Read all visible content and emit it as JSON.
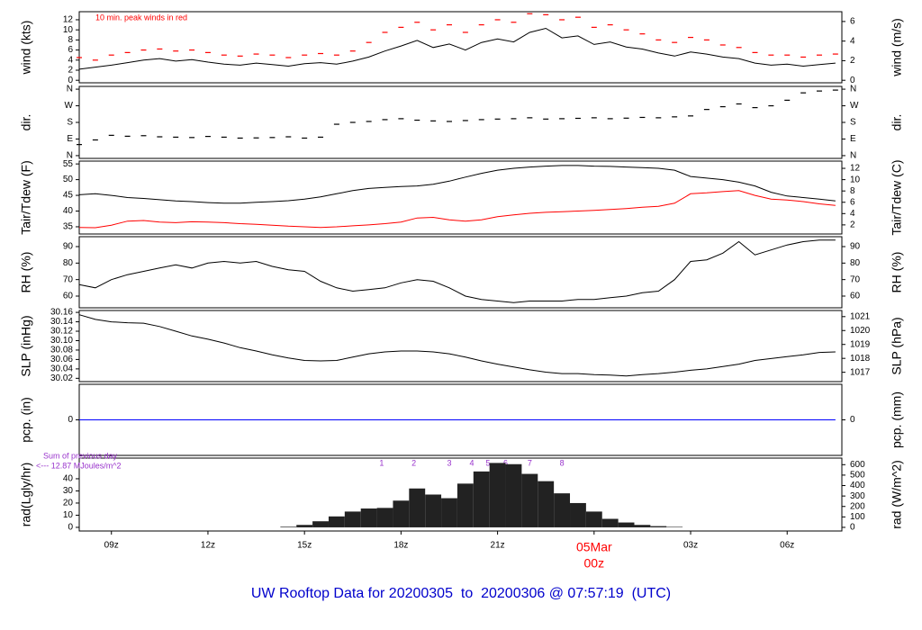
{
  "title": "UW Rooftop Data for 20200305  to  20200306 @ 07:57:19  (UTC)",
  "chart_data": [
    {
      "type": "line",
      "ylabel": "wind (kts)",
      "y2label": "wind (m/s)",
      "note": "10 min. peak winds in red",
      "note_color": "#ff0000",
      "xlim": [
        8,
        31.7
      ],
      "ylim": [
        -0.5,
        13.6
      ],
      "yticks": [
        0,
        2,
        4,
        6,
        8,
        10,
        12
      ],
      "y2lim": [
        -0.257,
        7.0
      ],
      "y2ticks": [
        0,
        2,
        4,
        6
      ],
      "x": [
        8,
        8.5,
        9,
        9.5,
        10,
        10.5,
        11,
        11.5,
        12,
        12.5,
        13,
        13.5,
        14,
        14.5,
        15,
        15.5,
        16,
        16.5,
        17,
        17.5,
        18,
        18.5,
        19,
        19.5,
        20,
        20.5,
        21,
        21.5,
        22,
        22.5,
        23,
        23.5,
        24,
        24.5,
        25,
        25.5,
        26,
        26.5,
        27,
        27.5,
        28,
        28.5,
        29,
        29.5,
        30,
        30.5,
        31,
        31.5
      ],
      "series": [
        {
          "color": "#000000",
          "values": [
            2.2,
            2.6,
            3.0,
            3.5,
            4.0,
            4.3,
            3.8,
            4.1,
            3.6,
            3.2,
            3.0,
            3.4,
            3.1,
            2.8,
            3.3,
            3.5,
            3.2,
            3.8,
            4.6,
            5.8,
            6.8,
            7.9,
            6.5,
            7.2,
            6.0,
            7.5,
            8.2,
            7.6,
            9.5,
            10.3,
            8.4,
            8.8,
            7.1,
            7.6,
            6.6,
            6.2,
            5.4,
            4.8,
            5.6,
            5.2,
            4.6,
            4.3,
            3.4,
            3.0,
            3.2,
            2.8,
            3.1,
            3.4
          ]
        },
        {
          "color": "#ff0000",
          "marker": "dash",
          "values": [
            4.5,
            4.0,
            5.0,
            5.5,
            6.0,
            6.2,
            5.8,
            6.0,
            5.5,
            5.0,
            4.8,
            5.2,
            5.0,
            4.5,
            5.0,
            5.3,
            5.0,
            5.8,
            7.5,
            9.5,
            10.5,
            11.5,
            10.0,
            11.0,
            9.5,
            11.0,
            12.0,
            11.5,
            13.2,
            13.0,
            12.0,
            12.5,
            10.5,
            11.0,
            10.0,
            9.2,
            8.0,
            7.5,
            8.5,
            8.0,
            7.0,
            6.5,
            5.5,
            5.0,
            5.0,
            4.6,
            5.0,
            5.2
          ]
        }
      ]
    },
    {
      "type": "scatter",
      "ylabel": "dir.",
      "y2label": "dir.",
      "xlim": [
        8,
        31.7
      ],
      "ylim": [
        -15,
        375
      ],
      "yticks": [
        {
          "value": 0,
          "label": "N"
        },
        {
          "value": 90,
          "label": "E"
        },
        {
          "value": 180,
          "label": "S"
        },
        {
          "value": 270,
          "label": "W"
        },
        {
          "value": 360,
          "label": "N"
        }
      ],
      "y2lim": [
        -15,
        375
      ],
      "y2ticks": [
        {
          "value": 0,
          "label": "N"
        },
        {
          "value": 90,
          "label": "E"
        },
        {
          "value": 180,
          "label": "S"
        },
        {
          "value": 270,
          "label": "W"
        },
        {
          "value": 360,
          "label": "N"
        }
      ],
      "x": [
        8,
        8.5,
        9,
        9.5,
        10,
        10.5,
        11,
        11.5,
        12,
        12.5,
        13,
        13.5,
        14,
        14.5,
        15,
        15.5,
        16,
        16.5,
        17,
        17.5,
        18,
        18.5,
        19,
        19.5,
        20,
        20.5,
        21,
        21.5,
        22,
        22.5,
        23,
        23.5,
        24,
        24.5,
        25,
        25.5,
        26,
        26.5,
        27,
        27.5,
        28,
        28.5,
        29,
        29.5,
        30,
        30.5,
        31,
        31.5
      ],
      "series": [
        {
          "color": "#000000",
          "values": [
            60,
            85,
            110,
            105,
            108,
            102,
            100,
            98,
            104,
            100,
            95,
            96,
            98,
            102,
            95,
            100,
            170,
            180,
            185,
            195,
            200,
            192,
            188,
            185,
            190,
            195,
            198,
            200,
            205,
            198,
            200,
            202,
            205,
            200,
            203,
            207,
            205,
            210,
            215,
            250,
            265,
            280,
            260,
            270,
            300,
            340,
            350,
            355
          ]
        }
      ]
    },
    {
      "type": "line",
      "ylabel": "Tair/Tdew (F)",
      "y2label": "Tair/Tdew (C)",
      "xlim": [
        8,
        31.7
      ],
      "ylim": [
        32.7,
        55.9
      ],
      "yticks": [
        35,
        40,
        45,
        50,
        55
      ],
      "y2lim": [
        0.39,
        13.28
      ],
      "y2ticks": [
        2,
        4,
        6,
        8,
        10,
        12
      ],
      "x": [
        8,
        8.5,
        9,
        9.5,
        10,
        10.5,
        11,
        11.5,
        12,
        12.5,
        13,
        13.5,
        14,
        14.5,
        15,
        15.5,
        16,
        16.5,
        17,
        17.5,
        18,
        18.5,
        19,
        19.5,
        20,
        20.5,
        21,
        21.5,
        22,
        22.5,
        23,
        23.5,
        24,
        24.5,
        25,
        25.5,
        26,
        26.5,
        27,
        27.5,
        28,
        28.5,
        29,
        29.5,
        30,
        30.5,
        31,
        31.5
      ],
      "series": [
        {
          "color": "#000000",
          "values": [
            45.2,
            45.5,
            45.0,
            44.3,
            44.0,
            43.6,
            43.2,
            43.0,
            42.7,
            42.5,
            42.5,
            42.8,
            43.0,
            43.3,
            43.8,
            44.5,
            45.5,
            46.5,
            47.2,
            47.5,
            47.8,
            48.0,
            48.5,
            49.5,
            50.8,
            52.0,
            53.0,
            53.6,
            54.0,
            54.3,
            54.5,
            54.5,
            54.3,
            54.2,
            54.0,
            53.8,
            53.6,
            53.0,
            51.0,
            50.5,
            50.0,
            49.2,
            48.0,
            46.0,
            44.8,
            44.3,
            43.8,
            43.2
          ]
        },
        {
          "color": "#ff0000",
          "values": [
            34.8,
            34.7,
            35.5,
            36.8,
            37.0,
            36.5,
            36.3,
            36.6,
            36.5,
            36.3,
            36.0,
            35.8,
            35.5,
            35.2,
            35.0,
            34.8,
            35.0,
            35.3,
            35.6,
            36.0,
            36.5,
            37.8,
            38.0,
            37.2,
            36.8,
            37.2,
            38.2,
            38.8,
            39.3,
            39.6,
            39.8,
            40.0,
            40.2,
            40.5,
            40.8,
            41.2,
            41.5,
            42.5,
            45.5,
            45.8,
            46.2,
            46.5,
            45.0,
            43.8,
            43.5,
            43.0,
            42.3,
            41.8
          ]
        }
      ]
    },
    {
      "type": "line",
      "ylabel": "RH (%)",
      "y2label": "RH (%)",
      "xlim": [
        8,
        31.7
      ],
      "ylim": [
        52.9,
        96
      ],
      "yticks": [
        60,
        70,
        80,
        90
      ],
      "y2lim": [
        52.9,
        96
      ],
      "y2ticks": [
        60,
        70,
        80,
        90
      ],
      "x": [
        8,
        8.5,
        9,
        9.5,
        10,
        10.5,
        11,
        11.5,
        12,
        12.5,
        13,
        13.5,
        14,
        14.5,
        15,
        15.5,
        16,
        16.5,
        17,
        17.5,
        18,
        18.5,
        19,
        19.5,
        20,
        20.5,
        21,
        21.5,
        22,
        22.5,
        23,
        23.5,
        24,
        24.5,
        25,
        25.5,
        26,
        26.5,
        27,
        27.5,
        28,
        28.5,
        29,
        29.5,
        30,
        30.5,
        31,
        31.5
      ],
      "series": [
        {
          "color": "#000000",
          "values": [
            67,
            65,
            70,
            73,
            75,
            77,
            79,
            77,
            80,
            81,
            80,
            81,
            78,
            76,
            75,
            69,
            65,
            63,
            64,
            65,
            68,
            70,
            69,
            65,
            60,
            58,
            57,
            56,
            57,
            57,
            57,
            58,
            58,
            59,
            60,
            62,
            63,
            70,
            81,
            82,
            86,
            93,
            85,
            88,
            91,
            93,
            94,
            94
          ]
        }
      ]
    },
    {
      "type": "line",
      "ylabel": "SLP (inHg)",
      "y2label": "SLP (hPa)",
      "xlim": [
        8,
        31.7
      ],
      "ylim": [
        30.013,
        30.164
      ],
      "yticks": [
        30.02,
        30.04,
        30.06,
        30.08,
        {
          "value": 30.1,
          "label": "30.10"
        },
        30.12,
        30.14,
        30.16
      ],
      "y2lim": [
        1016.33,
        1021.44
      ],
      "y2ticks": [
        1017,
        1018,
        1019,
        1020,
        1021
      ],
      "x": [
        8,
        8.5,
        9,
        9.5,
        10,
        10.5,
        11,
        11.5,
        12,
        12.5,
        13,
        13.5,
        14,
        14.5,
        15,
        15.5,
        16,
        16.5,
        17,
        17.5,
        18,
        18.5,
        19,
        19.5,
        20,
        20.5,
        21,
        21.5,
        22,
        22.5,
        23,
        23.5,
        24,
        24.5,
        25,
        25.5,
        26,
        26.5,
        27,
        27.5,
        28,
        28.5,
        29,
        29.5,
        30,
        30.5,
        31,
        31.5
      ],
      "series": [
        {
          "color": "#000000",
          "values": [
            30.155,
            30.145,
            30.14,
            30.138,
            30.137,
            30.13,
            30.12,
            30.11,
            30.103,
            30.095,
            30.085,
            30.078,
            30.07,
            30.063,
            30.058,
            30.057,
            30.058,
            30.065,
            30.072,
            30.076,
            30.078,
            30.078,
            30.076,
            30.072,
            30.065,
            30.057,
            30.05,
            30.044,
            30.038,
            30.033,
            30.03,
            30.03,
            30.028,
            30.027,
            30.025,
            30.028,
            30.03,
            30.033,
            30.037,
            30.04,
            30.045,
            30.05,
            30.058,
            30.062,
            30.066,
            30.07,
            30.075,
            30.076
          ]
        }
      ]
    },
    {
      "type": "line",
      "ylabel": "pcp. (in)",
      "y2label": "pcp. (mm)",
      "xlim": [
        8,
        31.7
      ],
      "ylim": [
        -1,
        1
      ],
      "yticks": [
        0
      ],
      "y2lim": [
        -25.4,
        25.4
      ],
      "y2ticks": [
        0
      ],
      "x": [
        8,
        8.5,
        9,
        9.5,
        10,
        10.5,
        11,
        11.5,
        12,
        12.5,
        13,
        13.5,
        14,
        14.5,
        15,
        15.5,
        16,
        16.5,
        17,
        17.5,
        18,
        18.5,
        19,
        19.5,
        20,
        20.5,
        21,
        21.5,
        22,
        22.5,
        23,
        23.5,
        24,
        24.5,
        25,
        25.5,
        26,
        26.5,
        27,
        27.5,
        28,
        28.5,
        29,
        29.5,
        30,
        30.5,
        31,
        31.5
      ],
      "series": [
        {
          "color": "#0000ff",
          "values": [
            0,
            0,
            0,
            0,
            0,
            0,
            0,
            0,
            0,
            0,
            0,
            0,
            0,
            0,
            0,
            0,
            0,
            0,
            0,
            0,
            0,
            0,
            0,
            0,
            0,
            0,
            0,
            0,
            0,
            0,
            0,
            0,
            0,
            0,
            0,
            0,
            0,
            0,
            0,
            0,
            0,
            0,
            0,
            0,
            0,
            0,
            0,
            0
          ]
        }
      ]
    },
    {
      "type": "bar",
      "ylabel": "rad(Lgly/hr)",
      "y2label": "rad (W/m^2)",
      "notes": [
        "Sum of previous day",
        "<--- 12.87 MJoules/m^2"
      ],
      "note_color": "#9933cc",
      "hours": [
        1,
        2,
        3,
        4,
        5,
        6,
        7,
        8
      ],
      "hour_x": [
        17.4,
        18.4,
        19.5,
        20.2,
        20.7,
        21.25,
        22.0,
        23.0
      ],
      "xlim": [
        8,
        31.7
      ],
      "ylim": [
        -3,
        57
      ],
      "yticks": [
        0,
        10,
        20,
        30,
        40
      ],
      "y2lim": [
        -34.9,
        662.9
      ],
      "y2ticks": [
        0,
        100,
        200,
        300,
        400,
        500,
        600
      ],
      "xticks": [
        {
          "value": 9,
          "label": "09z"
        },
        {
          "value": 12,
          "label": "12z"
        },
        {
          "value": 15,
          "label": "15z"
        },
        {
          "value": 18,
          "label": "18z"
        },
        {
          "value": 21,
          "label": "21z"
        },
        {
          "value": 24,
          "label": "00z"
        },
        {
          "value": 27,
          "label": "03z"
        },
        {
          "value": 30,
          "label": "06z"
        }
      ],
      "date_label": "05Mar",
      "date_x": 24,
      "date_color": "#ff0000",
      "x": [
        8,
        8.5,
        9,
        9.5,
        10,
        10.5,
        11,
        11.5,
        12,
        12.5,
        13,
        13.5,
        14,
        14.5,
        15,
        15.5,
        16,
        16.5,
        17,
        17.5,
        18,
        18.5,
        19,
        19.5,
        20,
        20.5,
        21,
        21.5,
        22,
        22.5,
        23,
        23.5,
        24,
        24.5,
        25,
        25.5,
        26,
        26.5,
        27,
        27.5,
        28,
        28.5,
        29,
        29.5,
        30,
        30.5,
        31,
        31.5
      ],
      "series": [
        {
          "color": "#222222",
          "values": [
            0,
            0,
            0,
            0,
            0,
            0,
            0,
            0,
            0,
            0,
            0,
            0,
            0,
            0.5,
            2,
            5,
            9,
            13,
            15.5,
            16,
            22,
            32,
            27,
            24,
            36,
            46,
            53,
            52,
            44,
            38,
            28,
            20,
            13,
            7,
            4,
            2,
            1,
            0.4,
            0,
            0,
            0,
            0,
            0,
            0,
            0,
            0,
            0,
            0
          ]
        }
      ]
    }
  ]
}
